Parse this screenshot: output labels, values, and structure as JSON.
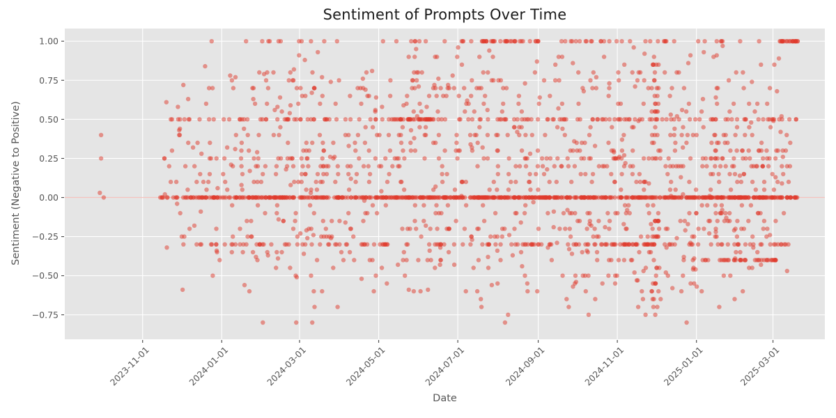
{
  "figure": {
    "background": "#ffffff"
  },
  "chart_data": {
    "type": "scatter",
    "title": "Sentiment of Prompts Over Time",
    "xlabel": "Date",
    "ylabel": "Sentiment (Negative to Positive)",
    "grid": true,
    "legend": false,
    "plot_bg": "#e5e5e5",
    "grid_color": "#ffffff",
    "text_color": "#555555",
    "tick_color": "#4d4d4d",
    "title_color": "#1b1b1b",
    "marker": {
      "color": "#e03a2c",
      "alpha": 0.5,
      "radius": 3.2
    },
    "zero_line": {
      "y": 0,
      "color": "#e03a2c",
      "alpha": 0.3,
      "width": 1.3
    },
    "x_axis": {
      "epoch": "2023-09-01",
      "lim_days": [
        1,
        587
      ],
      "tick_rotation_deg": 45,
      "ticks": [
        {
          "day": 61,
          "label": "2023-11-01"
        },
        {
          "day": 122,
          "label": "2024-01-01"
        },
        {
          "day": 182,
          "label": "2024-03-01"
        },
        {
          "day": 243,
          "label": "2024-05-01"
        },
        {
          "day": 304,
          "label": "2024-07-01"
        },
        {
          "day": 366,
          "label": "2024-09-01"
        },
        {
          "day": 427,
          "label": "2024-11-01"
        },
        {
          "day": 488,
          "label": "2025-01-01"
        },
        {
          "day": 547,
          "label": "2025-03-01"
        }
      ]
    },
    "y_axis": {
      "lim": [
        -0.907,
        1.081
      ],
      "ticks": [
        {
          "v": 1.0,
          "label": "1.00"
        },
        {
          "v": 0.75,
          "label": "0.75"
        },
        {
          "v": 0.5,
          "label": "0.50"
        },
        {
          "v": 0.25,
          "label": "0.25"
        },
        {
          "v": 0.0,
          "label": "0.00"
        },
        {
          "v": -0.25,
          "label": "−0.25"
        },
        {
          "v": -0.5,
          "label": "−0.50"
        },
        {
          "v": -0.75,
          "label": "−0.75"
        }
      ]
    },
    "visible_date_range": [
      "2023-10-01",
      "2025-03-19"
    ],
    "sentiment_range": [
      -0.81,
      1.0
    ],
    "seed": 11,
    "notable_points": [
      {
        "day": 29,
        "v": 0.4
      },
      {
        "day": 29,
        "v": 0.25
      },
      {
        "day": 28,
        "v": 0.03
      },
      {
        "day": 31,
        "v": 0.0
      }
    ],
    "bands": [
      {
        "v": 1.0,
        "n": 70,
        "d0": 105,
        "d1": 566
      },
      {
        "v": 1.0,
        "n": 22,
        "d0": 323,
        "d1": 366,
        "run": true
      },
      {
        "v": 1.0,
        "n": 20,
        "d0": 552,
        "d1": 566,
        "run": true
      },
      {
        "v": 0.9,
        "n": 10,
        "d0": 230,
        "d1": 540
      },
      {
        "v": 0.85,
        "n": 6,
        "d0": 300,
        "d1": 550
      },
      {
        "v": 0.8,
        "n": 20,
        "d0": 95,
        "d1": 560
      },
      {
        "v": 0.75,
        "n": 22,
        "d0": 115,
        "d1": 556
      },
      {
        "v": 0.7,
        "n": 40,
        "d0": 100,
        "d1": 560
      },
      {
        "v": 0.65,
        "n": 18,
        "d0": 130,
        "d1": 555
      },
      {
        "v": 0.6,
        "n": 24,
        "d0": 110,
        "d1": 555
      },
      {
        "v": 0.55,
        "n": 14,
        "d0": 160,
        "d1": 550
      },
      {
        "v": 0.5,
        "n": 150,
        "d0": 78,
        "d1": 566
      },
      {
        "v": 0.5,
        "n": 28,
        "d0": 252,
        "d1": 285,
        "run": true
      },
      {
        "v": 0.45,
        "n": 20,
        "d0": 110,
        "d1": 550
      },
      {
        "v": 0.4,
        "n": 48,
        "d0": 75,
        "d1": 558
      },
      {
        "v": 0.35,
        "n": 28,
        "d0": 95,
        "d1": 555
      },
      {
        "v": 0.3,
        "n": 48,
        "d0": 80,
        "d1": 560
      },
      {
        "v": 0.25,
        "n": 72,
        "d0": 75,
        "d1": 562
      },
      {
        "v": 0.2,
        "n": 70,
        "d0": 75,
        "d1": 562
      },
      {
        "v": 0.15,
        "n": 40,
        "d0": 85,
        "d1": 558
      },
      {
        "v": 0.1,
        "n": 48,
        "d0": 80,
        "d1": 560
      },
      {
        "v": 0.05,
        "n": 26,
        "d0": 85,
        "d1": 555
      },
      {
        "v": 0.0,
        "n": 640,
        "d0": 72,
        "d1": 566
      },
      {
        "v": -0.05,
        "n": 22,
        "d0": 95,
        "d1": 555
      },
      {
        "v": -0.1,
        "n": 42,
        "d0": 80,
        "d1": 560
      },
      {
        "v": -0.15,
        "n": 28,
        "d0": 95,
        "d1": 556
      },
      {
        "v": -0.2,
        "n": 46,
        "d0": 80,
        "d1": 560
      },
      {
        "v": -0.25,
        "n": 34,
        "d0": 90,
        "d1": 556
      },
      {
        "v": -0.3,
        "n": 140,
        "d0": 80,
        "d1": 562
      },
      {
        "v": -0.3,
        "n": 24,
        "d0": 415,
        "d1": 455,
        "run": true
      },
      {
        "v": -0.35,
        "n": 20,
        "d0": 110,
        "d1": 550
      },
      {
        "v": -0.4,
        "n": 30,
        "d0": 110,
        "d1": 500
      },
      {
        "v": -0.4,
        "n": 34,
        "d0": 506,
        "d1": 549,
        "run": true
      },
      {
        "v": -0.45,
        "n": 12,
        "d0": 130,
        "d1": 545
      },
      {
        "v": -0.5,
        "n": 18,
        "d0": 95,
        "d1": 545
      },
      {
        "v": -0.55,
        "n": 8,
        "d0": 160,
        "d1": 540
      },
      {
        "v": -0.6,
        "n": 13,
        "d0": 80,
        "d1": 535
      },
      {
        "v": -0.65,
        "n": 6,
        "d0": 260,
        "d1": 530
      },
      {
        "v": -0.7,
        "n": 6,
        "d0": 140,
        "d1": 515
      },
      {
        "v": -0.75,
        "n": 3,
        "d0": 340,
        "d1": 460
      },
      {
        "v": -0.8,
        "n": 5,
        "d0": 130,
        "d1": 490
      }
    ],
    "uniform_scatter": {
      "n": 240,
      "d0": 78,
      "d1": 562,
      "vmin": -0.6,
      "vmax": 0.97
    },
    "dense_column": {
      "d0": 453,
      "d1": 459,
      "n": 55,
      "vmin": -0.78,
      "vmax": 0.92,
      "step": 0.05
    }
  }
}
